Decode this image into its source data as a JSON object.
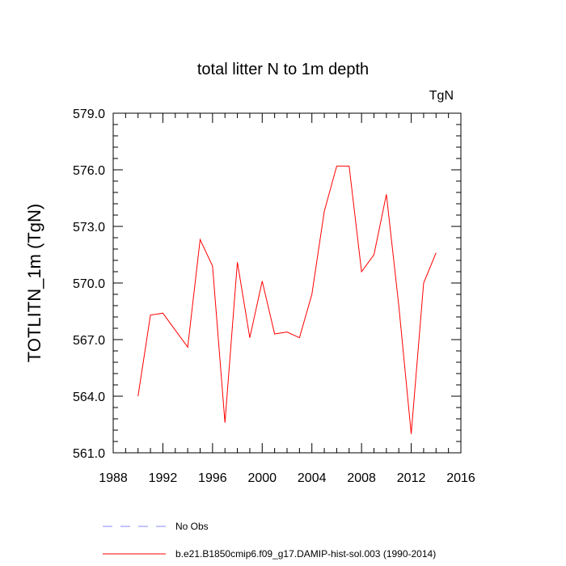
{
  "chart_data": {
    "type": "line",
    "title": "total litter N to 1m depth",
    "units": "TgN",
    "xlabel": "",
    "ylabel": "TOTLITN_1m  (TgN)",
    "xlim": [
      1988,
      2016
    ],
    "ylim": [
      561.0,
      579.0
    ],
    "xticks": [
      1988,
      1992,
      1996,
      2000,
      2004,
      2008,
      2012,
      2016
    ],
    "yticks": [
      561.0,
      564.0,
      567.0,
      570.0,
      573.0,
      576.0,
      579.0
    ],
    "xtick_labels": [
      "1988",
      "1992",
      "1996",
      "2000",
      "2004",
      "2008",
      "2012",
      "2016"
    ],
    "ytick_labels": [
      "561.0",
      "564.0",
      "567.0",
      "570.0",
      "573.0",
      "576.0",
      "579.0"
    ],
    "series": [
      {
        "name": "b.e21.B1850cmip6.f09_g17.DAMIP-hist-sol.003 (1990-2014)",
        "color": "#ff0000",
        "style": "solid",
        "x": [
          1990,
          1991,
          1992,
          1993,
          1994,
          1995,
          1996,
          1997,
          1998,
          1999,
          2000,
          2001,
          2002,
          2003,
          2004,
          2005,
          2006,
          2007,
          2008,
          2009,
          2010,
          2011,
          2012,
          2013,
          2014
        ],
        "y": [
          564.0,
          568.3,
          568.4,
          567.5,
          566.6,
          572.3,
          570.9,
          562.6,
          571.1,
          567.1,
          570.1,
          567.3,
          567.4,
          567.1,
          569.4,
          573.8,
          576.2,
          576.2,
          570.6,
          571.5,
          574.7,
          568.8,
          562.0,
          570.0,
          571.6
        ]
      }
    ],
    "legend": [
      {
        "label": "No Obs",
        "color": "#8888ff",
        "style": "dashed"
      },
      {
        "label": "b.e21.B1850cmip6.f09_g17.DAMIP-hist-sol.003 (1990-2014)",
        "color": "#ff0000",
        "style": "solid"
      }
    ],
    "legend_position": "bottom",
    "grid": false
  }
}
